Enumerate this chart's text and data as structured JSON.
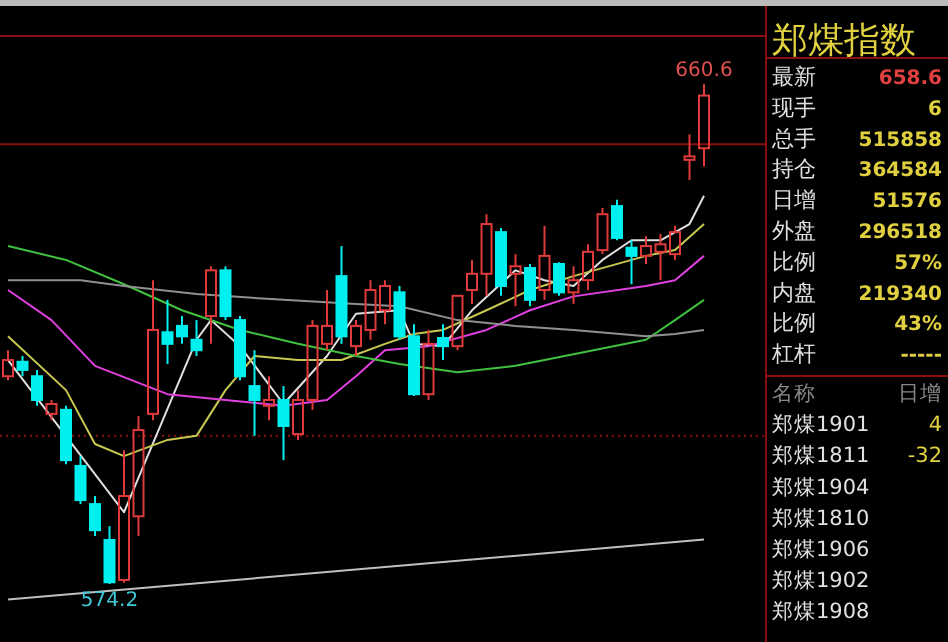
{
  "chart_data": [
    {
      "type": "candlestick",
      "categories": [
        null,
        null,
        null,
        null,
        null,
        null,
        null,
        null,
        null,
        null,
        null,
        null,
        null,
        null,
        null,
        null,
        null,
        null,
        null,
        null,
        null,
        null,
        null,
        null,
        null,
        null,
        null,
        null,
        null,
        null,
        null,
        null,
        null,
        null,
        null,
        null,
        null,
        null,
        null,
        null,
        null,
        null,
        null,
        null,
        null,
        null,
        null,
        null,
        null
      ],
      "ohlc": [
        [
          610.1,
          614.6,
          609.4,
          612.9
        ],
        [
          612.6,
          613.6,
          610.1,
          611.2
        ],
        [
          610.1,
          611.2,
          605.0,
          606.0
        ],
        [
          603.6,
          606.0,
          602.5,
          605.3
        ],
        [
          604.3,
          605.0,
          594.9,
          595.6
        ],
        [
          594.6,
          596.3,
          588.0,
          588.7
        ],
        [
          588.0,
          589.4,
          582.5,
          583.5
        ],
        [
          581.8,
          584.2,
          574.2,
          574.5
        ],
        [
          574.9,
          597.3,
          574.4,
          589.4
        ],
        [
          585.9,
          603.2,
          582.5,
          600.8
        ],
        [
          603.6,
          626.7,
          602.5,
          618.1
        ],
        [
          617.7,
          623.3,
          612.2,
          615.7
        ],
        [
          618.8,
          620.5,
          615.7,
          617.0
        ],
        [
          616.4,
          619.8,
          613.6,
          614.6
        ],
        [
          620.5,
          629.1,
          615.7,
          628.4
        ],
        [
          628.4,
          629.1,
          619.8,
          620.5
        ],
        [
          619.8,
          620.5,
          609.4,
          610.1
        ],
        [
          608.4,
          614.6,
          599.8,
          606.0
        ],
        [
          605.0,
          610.1,
          602.5,
          606.0
        ],
        [
          606.0,
          608.4,
          595.6,
          601.5
        ],
        [
          600.1,
          607.7,
          599.1,
          606.0
        ],
        [
          606.0,
          619.8,
          604.3,
          618.8
        ],
        [
          615.7,
          625.0,
          614.6,
          618.8
        ],
        [
          627.4,
          632.6,
          615.7,
          617.0
        ],
        [
          615.3,
          619.8,
          613.6,
          618.8
        ],
        [
          618.1,
          626.7,
          616.4,
          625.0
        ],
        [
          621.5,
          626.7,
          619.1,
          625.7
        ],
        [
          624.6,
          625.7,
          616.4,
          617.0
        ],
        [
          617.0,
          619.1,
          606.7,
          607.0
        ],
        [
          607.0,
          618.1,
          606.0,
          615.7
        ],
        [
          616.7,
          619.1,
          612.9,
          615.3
        ],
        [
          615.3,
          624.0,
          614.6,
          624.0
        ],
        [
          625.0,
          630.2,
          622.6,
          627.8
        ],
        [
          627.8,
          638.1,
          624.0,
          636.4
        ],
        [
          635.0,
          635.7,
          624.0,
          625.7
        ],
        [
          627.8,
          631.2,
          622.2,
          629.1
        ],
        [
          628.8,
          629.5,
          622.2,
          623.3
        ],
        [
          625.0,
          636.1,
          623.3,
          630.9
        ],
        [
          629.5,
          629.8,
          624.0,
          624.6
        ],
        [
          624.6,
          629.1,
          622.6,
          626.7
        ],
        [
          626.7,
          632.9,
          625.0,
          631.6
        ],
        [
          631.9,
          639.2,
          631.2,
          638.1
        ],
        [
          639.5,
          640.6,
          633.6,
          634.0
        ],
        [
          632.3,
          633.6,
          626.0,
          630.9
        ],
        [
          630.9,
          634.3,
          629.5,
          632.6
        ],
        [
          631.6,
          634.7,
          626.7,
          632.9
        ],
        [
          631.2,
          636.1,
          630.2,
          635.0
        ],
        [
          647.5,
          651.9,
          644.0,
          648.1
        ],
        [
          649.5,
          660.6,
          646.4,
          658.6
        ]
      ],
      "series": [
        {
          "type": "line",
          "color": "#e0e0e0",
          "values": [
            612.9,
            null,
            null,
            null,
            null,
            null,
            null,
            null,
            586.6,
            null,
            null,
            null,
            null,
            616.4,
            619.8,
            null,
            615.3,
            null,
            null,
            605.3,
            null,
            null,
            613.6,
            null,
            620.9,
            null,
            null,
            621.5,
            615.7,
            null,
            615.3,
            null,
            621.5,
            null,
            null,
            628.4,
            null,
            626.7,
            null,
            625.7,
            null,
            630.2,
            null,
            633.6,
            null,
            633.6,
            null,
            636.4,
            641.3
          ]
        },
        {
          "type": "line",
          "color": "#c8c850",
          "values": [
            617.0,
            null,
            null,
            null,
            607.7,
            null,
            598.4,
            null,
            596.3,
            null,
            null,
            599.1,
            null,
            599.8,
            null,
            607.7,
            null,
            613.6,
            null,
            null,
            612.9,
            null,
            null,
            612.9,
            null,
            null,
            615.7,
            null,
            617.4,
            null,
            618.1,
            null,
            null,
            621.5,
            null,
            null,
            625.0,
            null,
            null,
            627.4,
            null,
            null,
            null,
            null,
            630.9,
            null,
            631.9,
            null,
            636.4
          ]
        },
        {
          "type": "line",
          "color": "#e040e0",
          "values": [
            625.0,
            null,
            null,
            619.8,
            null,
            null,
            611.9,
            null,
            null,
            null,
            null,
            607.0,
            null,
            null,
            null,
            606.0,
            null,
            null,
            null,
            605.0,
            null,
            null,
            606.0,
            null,
            610.1,
            null,
            614.6,
            null,
            null,
            615.3,
            null,
            null,
            null,
            618.1,
            null,
            null,
            621.5,
            null,
            null,
            623.9,
            null,
            null,
            null,
            null,
            625.7,
            null,
            626.7,
            null,
            630.9
          ]
        },
        {
          "type": "line",
          "color": "#40c040",
          "values": [
            632.6,
            null,
            null,
            null,
            630.2,
            null,
            null,
            null,
            626.0,
            null,
            null,
            null,
            621.5,
            null,
            null,
            null,
            618.1,
            null,
            null,
            null,
            615.7,
            null,
            null,
            null,
            613.6,
            null,
            null,
            612.2,
            null,
            null,
            null,
            610.8,
            null,
            null,
            null,
            611.9,
            null,
            null,
            null,
            613.9,
            null,
            null,
            null,
            null,
            616.4,
            null,
            619.8,
            null,
            623.3
          ]
        },
        {
          "type": "line",
          "color": "#909090",
          "values": [
            626.7,
            null,
            null,
            null,
            null,
            626.7,
            null,
            null,
            625.7,
            null,
            null,
            null,
            null,
            624.3,
            null,
            null,
            null,
            null,
            null,
            623.3,
            null,
            null,
            null,
            null,
            622.6,
            null,
            null,
            622.2,
            null,
            null,
            null,
            619.8,
            null,
            null,
            null,
            618.8,
            null,
            null,
            null,
            618.1,
            null,
            null,
            null,
            null,
            617.0,
            null,
            617.4,
            null,
            618.1
          ]
        },
        {
          "type": "line",
          "color": "#c0c0c0",
          "values": [
            571.5,
            null,
            null,
            null,
            null,
            null,
            null,
            null,
            null,
            null,
            null,
            null,
            null,
            null,
            null,
            null,
            null,
            null,
            null,
            null,
            null,
            null,
            null,
            null,
            null,
            null,
            null,
            null,
            null,
            null,
            null,
            null,
            null,
            null,
            null,
            null,
            null,
            null,
            null,
            null,
            null,
            null,
            null,
            null,
            null,
            null,
            null,
            null,
            581.9
          ]
        }
      ],
      "ref_lines": [
        {
          "axis": "y",
          "value": 650.2,
          "color": "#8a1010",
          "line_style": "solid"
        },
        {
          "axis": "y",
          "value": 599.8,
          "color": "#8a1010",
          "line_style": "dotted"
        }
      ],
      "annotations": [
        {
          "text": "660.6",
          "y": 660.6
        },
        {
          "text": "574.2",
          "y": 574.2
        }
      ]
    },
    {
      "type": "other",
      "title": "郑煤指数",
      "annotations": [
        "最新",
        "658.6",
        "现手",
        "6",
        "总手",
        "515858",
        "持仓",
        "364584",
        "日增",
        "51576",
        "外盘",
        "296518",
        "比例",
        "57%",
        "内盘",
        "219340",
        "比例",
        "43%",
        "杠杆",
        "-----",
        "名称",
        "日增",
        "郑煤1901",
        "4",
        "郑煤1811",
        "-32",
        "郑煤1904",
        "郑煤1810",
        "郑煤1906",
        "郑煤1902",
        "郑煤1908"
      ]
    }
  ]
}
